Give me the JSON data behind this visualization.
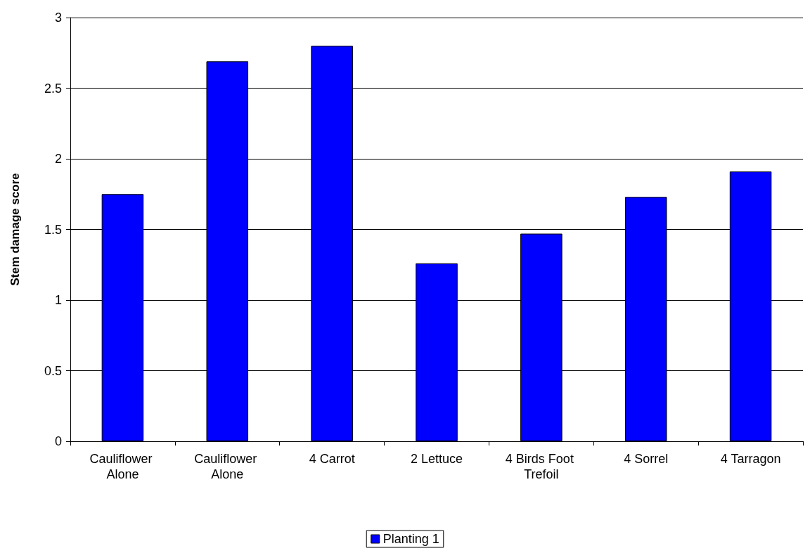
{
  "chart_data": {
    "type": "bar",
    "ylabel": "Stem damage score",
    "categories": [
      "Cauliflower Alone",
      "Cauliflower Alone",
      "4 Carrot",
      "2 Lettuce",
      "4 Birds Foot Trefoil",
      "4 Sorrel",
      "4 Tarragon"
    ],
    "series": [
      {
        "name": "Planting 1",
        "color": "#0000ff",
        "values": [
          1.75,
          2.69,
          2.8,
          1.26,
          1.47,
          1.73,
          1.91
        ]
      }
    ],
    "ylim": [
      0,
      3
    ],
    "yticks": [
      0,
      0.5,
      1,
      1.5,
      2,
      2.5,
      3
    ],
    "grid": "y",
    "legend": "bottom"
  }
}
